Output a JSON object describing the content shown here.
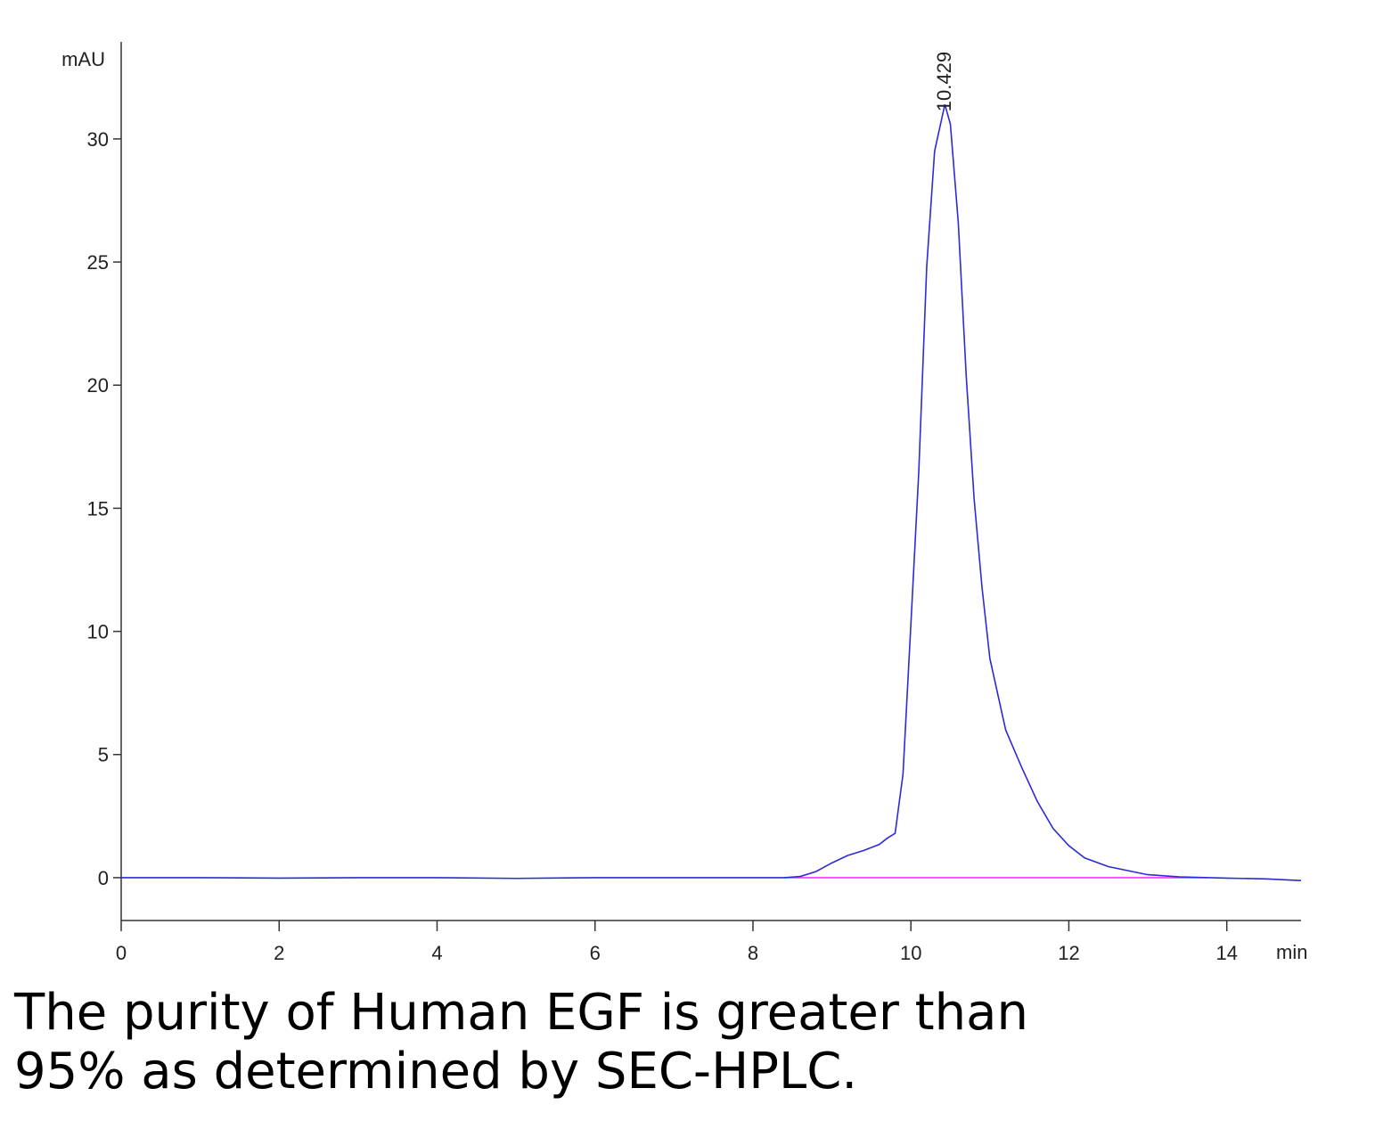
{
  "chart_data": {
    "type": "line",
    "x_label": "min",
    "y_label": "mAU",
    "xlim": [
      0,
      14.94
    ],
    "ylim": [
      -1.74,
      33.94
    ],
    "xticks": [
      0,
      2,
      4,
      6,
      8,
      10,
      12,
      14
    ],
    "yticks": [
      0,
      5,
      10,
      15,
      20,
      25,
      30
    ],
    "grid": false,
    "series": [
      {
        "color": "#2b2bd9",
        "x": [
          0,
          1,
          2,
          3,
          4,
          5,
          6,
          7,
          8,
          8.4,
          8.6,
          8.8,
          9.0,
          9.2,
          9.4,
          9.6,
          9.7,
          9.8,
          9.9,
          10.0,
          10.1,
          10.2,
          10.3,
          10.43,
          10.5,
          10.6,
          10.7,
          10.8,
          10.9,
          11.0,
          11.2,
          11.4,
          11.6,
          11.8,
          12.0,
          12.2,
          12.5,
          12.8,
          13.0,
          13.4,
          14.0,
          14.5,
          14.94
        ],
        "values": [
          0,
          0,
          -0.02,
          0,
          0,
          -0.03,
          0,
          0,
          0,
          0,
          0.05,
          0.25,
          0.6,
          0.9,
          1.1,
          1.35,
          1.6,
          1.8,
          4.2,
          10.3,
          16.5,
          24.8,
          29.5,
          31.4,
          30.6,
          26.6,
          20.4,
          15.4,
          11.8,
          8.9,
          6.0,
          4.5,
          3.1,
          2.0,
          1.3,
          0.8,
          0.45,
          0.25,
          0.12,
          0.03,
          -0.02,
          -0.05,
          -0.12
        ]
      },
      {
        "color": "#ff33ff",
        "x": [
          8.4,
          13.75
        ],
        "values": [
          0,
          0
        ]
      }
    ],
    "annotations": [
      {
        "label": "10.429",
        "x": 10.429,
        "y": 31.4
      }
    ],
    "caption": [
      "The purity of Human EGF is greater than",
      "95% as determined by SEC-HPLC."
    ]
  }
}
